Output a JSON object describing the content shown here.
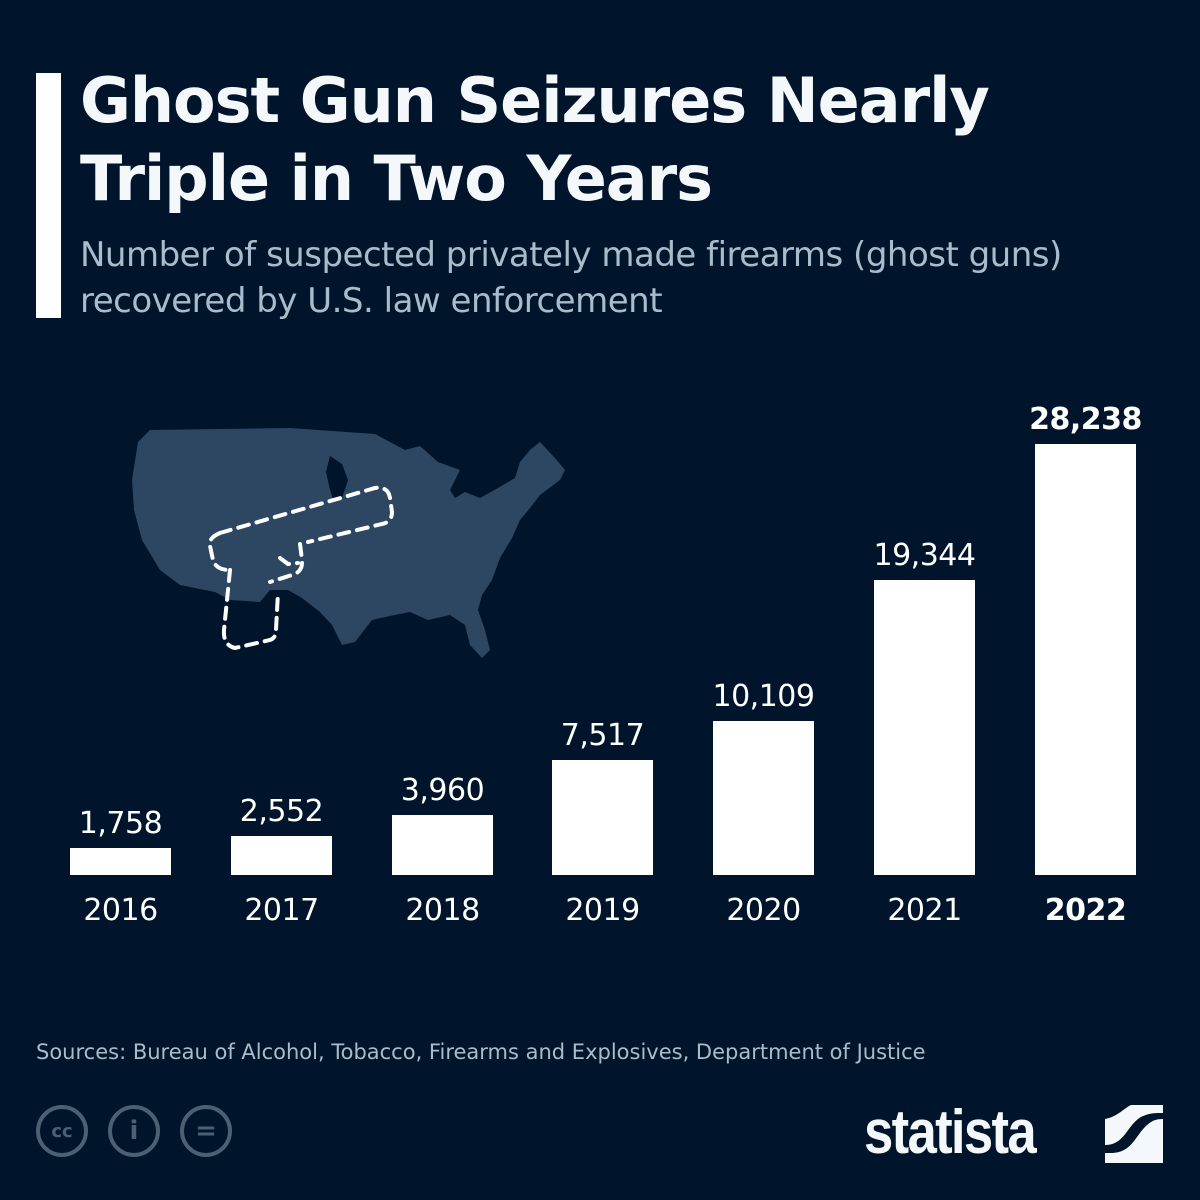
{
  "header": {
    "title": "Ghost Gun Seizures Nearly Triple in Two Years",
    "subtitle": "Number of suspected privately made firearms (ghost guns) recovered by U.S. law enforcement"
  },
  "illustration": {
    "icon": "us-map-with-dashed-pistol-icon"
  },
  "chart_data": {
    "type": "bar",
    "title": "Ghost Gun Seizures Nearly Triple in Two Years",
    "subtitle": "Number of suspected privately made firearms (ghost guns) recovered by U.S. law enforcement",
    "categories": [
      "2016",
      "2017",
      "2018",
      "2019",
      "2020",
      "2021",
      "2022"
    ],
    "values": [
      1758,
      2552,
      3960,
      7517,
      10109,
      19344,
      28238
    ],
    "value_labels": [
      "1,758",
      "2,552",
      "3,960",
      "7,517",
      "10,109",
      "19,344",
      "28,238"
    ],
    "highlighted_category": "2022",
    "xlabel": "",
    "ylabel": "",
    "grid": false,
    "legend": "none",
    "colors": {
      "bars": "#ffffff",
      "background": "#00152b"
    }
  },
  "footer": {
    "source": "Sources: Bureau of Alcohol, Tobacco, Firearms and Explosives, Department of Justice",
    "license_icons": [
      "cc-icon",
      "attribution-icon",
      "no-derivatives-icon"
    ],
    "license_glyphs": [
      "cc",
      "i",
      "="
    ],
    "brand": "statista"
  }
}
